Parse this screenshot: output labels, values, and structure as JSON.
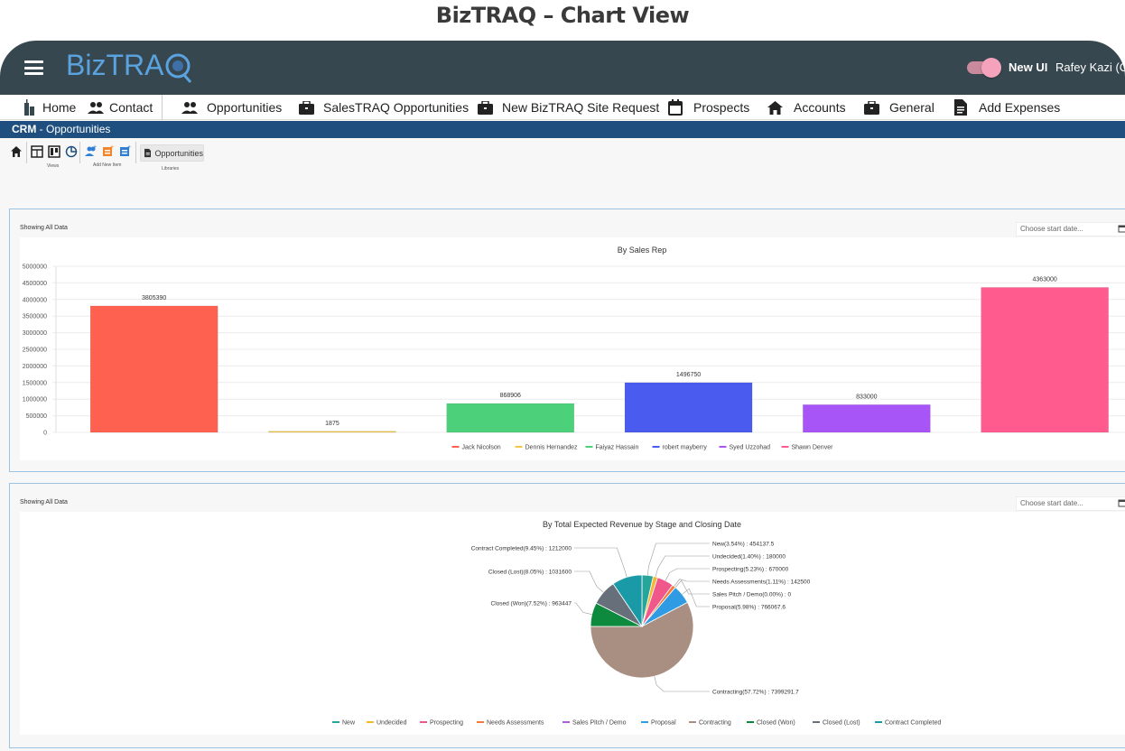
{
  "page": {
    "title": "BizTRAQ – Chart View"
  },
  "topbar": {
    "logo_text": "BizTRAQ",
    "toggle_label": "New UI",
    "user_name": "Rafey Kazi (C"
  },
  "nav": {
    "home": "Home",
    "contact": "Contact",
    "opportunities": "Opportunities",
    "salestraq": "SalesTRAQ Opportunities",
    "new_site": "New BizTRAQ Site Request",
    "prospects": "Prospects",
    "accounts": "Accounts",
    "general": "General",
    "expenses": "Add Expenses"
  },
  "breadcrumb": {
    "module": "CRM",
    "page": " - Opportunities"
  },
  "ribbon": {
    "views_label": "Views",
    "add_label": "Add New Item",
    "libraries_label": "Libraries",
    "opportunities_button": "Opportunities"
  },
  "panel1": {
    "showing": "Showing All Data",
    "date_placeholder": "Choose start date..."
  },
  "panel2": {
    "showing": "Showing All Data",
    "date_placeholder": "Choose start date..."
  },
  "colors": {
    "topbar": "#37474f",
    "breadcrumb": "#1e4f7f",
    "toggle": "#f5a3bd"
  },
  "chart_data": [
    {
      "type": "bar",
      "title": "By Sales Rep",
      "categories": [
        "Jack Nicolson",
        "Dennis Hernandez",
        "Faiyaz Hassain",
        "robert mayberry",
        "Syed Uzzohad",
        "Shawn Denver"
      ],
      "values": [
        3805390,
        1875,
        868906,
        1496750,
        833000,
        4363000
      ],
      "value_labels": [
        "3805390",
        "1875",
        "868906",
        "1496750",
        "833000",
        "4363000"
      ],
      "colors": [
        "#ff6150",
        "#f5c842",
        "#4dd07a",
        "#4a5cf0",
        "#a855f7",
        "#ff5b8f"
      ],
      "ylim": [
        0,
        5000000
      ],
      "yticks": [
        "5000000",
        "4500000",
        "4000000",
        "3500000",
        "3000000",
        "2500000",
        "2000000",
        "1500000",
        "1000000",
        "500000",
        "0"
      ],
      "legend": "bottom",
      "grid": true
    },
    {
      "type": "pie",
      "title": "By Total Expected Revenue by Stage and Closing Date",
      "slices": [
        {
          "name": "New",
          "label": "New(3.54%) : 454137.5",
          "value": 454137.5,
          "color": "#26a69a"
        },
        {
          "name": "Undecided",
          "label": "Undecided(1.40%) : 180000",
          "value": 180000,
          "color": "#f5b731"
        },
        {
          "name": "Prospecting",
          "label": "Prospecting(5.23%) : 670000",
          "value": 670000,
          "color": "#f0578a"
        },
        {
          "name": "Needs Assessments",
          "label": "Needs Assessments(1.11%) : 142500",
          "value": 142500,
          "color": "#f47a3a"
        },
        {
          "name": "Sales Pitch / Demo",
          "label": "Sales Pitch / Demo(0.00%) : 0",
          "value": 0,
          "color": "#b05cd8"
        },
        {
          "name": "Proposal",
          "label": "Proposal(5.98%) : 766067.6",
          "value": 766067.6,
          "color": "#2f9be3"
        },
        {
          "name": "Contracting",
          "label": "Contracting(57.72%) : 7399291.7",
          "value": 7399291.7,
          "color": "#a98e82"
        },
        {
          "name": "Closed (Won)",
          "label": "Closed (Won)(7.52%) : 963447",
          "value": 963447,
          "color": "#0e8a3e"
        },
        {
          "name": "Closed (Lost)",
          "label": "Closed (Lost)(8.05%) : 1031600",
          "value": 1031600,
          "color": "#67707a"
        },
        {
          "name": "Contract Completed",
          "label": "Contract Completed(9.45%) : 1212000",
          "value": 1212000,
          "color": "#1a9aa6"
        }
      ],
      "legend": "bottom"
    }
  ]
}
